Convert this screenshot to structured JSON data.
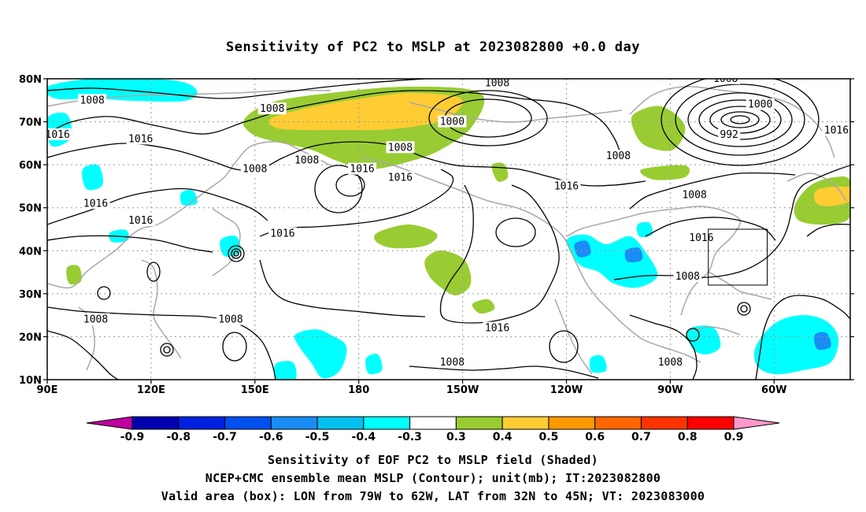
{
  "title": "Sensitivity of PC2 to MSLP at 2023082800 +0.0 day",
  "captions": [
    "Sensitivity of EOF PC2 to MSLP field (Shaded)",
    "NCEP+CMC ensemble mean MSLP (Contour); unit(mb); IT:2023082800",
    "Valid area (box): LON from 79W to 62W, LAT from 32N to 45N; VT: 2023083000"
  ],
  "map": {
    "lat_labels": [
      "80N",
      "70N",
      "60N",
      "50N",
      "40N",
      "30N",
      "20N",
      "10N"
    ],
    "lon_labels": [
      "90E",
      "120E",
      "150E",
      "180",
      "150W",
      "120W",
      "90W",
      "60W"
    ],
    "lat_values": [
      80,
      70,
      60,
      50,
      40,
      30,
      20,
      10
    ],
    "lon_values": [
      90,
      120,
      150,
      180,
      210,
      240,
      270,
      300
    ],
    "extent": {
      "lon_min": 90,
      "lon_max": 322,
      "lat_min": 10,
      "lat_max": 80
    },
    "valid_box": {
      "lon_west": 281,
      "lon_east": 298,
      "lat_south": 32,
      "lat_north": 45
    },
    "contour_labels": [
      {
        "text": "1008",
        "lon": 103,
        "lat": 75
      },
      {
        "text": "1008",
        "lon": 155,
        "lat": 73
      },
      {
        "text": "1008",
        "lon": 220,
        "lat": 79
      },
      {
        "text": "1008",
        "lon": 255,
        "lat": 62
      },
      {
        "text": "1008",
        "lon": 150,
        "lat": 59
      },
      {
        "text": "1008",
        "lon": 165,
        "lat": 61
      },
      {
        "text": "1008",
        "lon": 192,
        "lat": 64
      },
      {
        "text": "1008",
        "lon": 286,
        "lat": 80
      },
      {
        "text": "1000",
        "lon": 296,
        "lat": 74
      },
      {
        "text": "1000",
        "lon": 207,
        "lat": 70
      },
      {
        "text": "992",
        "lon": 287,
        "lat": 67
      },
      {
        "text": "1016",
        "lon": 93,
        "lat": 67
      },
      {
        "text": "1016",
        "lon": 117,
        "lat": 66
      },
      {
        "text": "1016",
        "lon": 181,
        "lat": 59
      },
      {
        "text": "1016",
        "lon": 192,
        "lat": 57
      },
      {
        "text": "1016",
        "lon": 240,
        "lat": 55
      },
      {
        "text": "1016",
        "lon": 318,
        "lat": 68
      },
      {
        "text": "1008",
        "lon": 277,
        "lat": 53
      },
      {
        "text": "1016",
        "lon": 104,
        "lat": 51
      },
      {
        "text": "1016",
        "lon": 117,
        "lat": 47
      },
      {
        "text": "1016",
        "lon": 158,
        "lat": 44
      },
      {
        "text": "1016",
        "lon": 279,
        "lat": 43
      },
      {
        "text": "1008",
        "lon": 275,
        "lat": 34
      },
      {
        "text": "1008",
        "lon": 104,
        "lat": 24
      },
      {
        "text": "1008",
        "lon": 143,
        "lat": 24
      },
      {
        "text": "1016",
        "lon": 220,
        "lat": 22
      },
      {
        "text": "1008",
        "lon": 207,
        "lat": 14
      },
      {
        "text": "1008",
        "lon": 270,
        "lat": 14
      }
    ]
  },
  "colorbar": {
    "labels": [
      "-0.9",
      "-0.8",
      "-0.7",
      "-0.6",
      "-0.5",
      "-0.4",
      "-0.3",
      "0.3",
      "0.4",
      "0.5",
      "0.6",
      "0.7",
      "0.8",
      "0.9"
    ],
    "colors": [
      "#c000a0",
      "#0000b0",
      "#0020e0",
      "#0050f0",
      "#1a8cf5",
      "#00c0f0",
      "#00ffff",
      "#ffffff",
      "#99cc33",
      "#ffcc33",
      "#ff9900",
      "#ff6600",
      "#ff3300",
      "#ff0000",
      "#ff99cc"
    ]
  }
}
